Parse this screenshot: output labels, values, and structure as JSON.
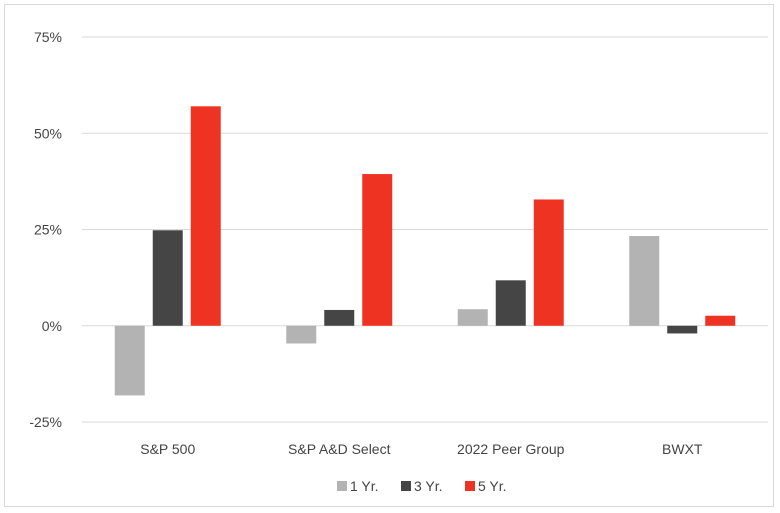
{
  "chart_data": {
    "type": "bar",
    "categories": [
      "S&P 500",
      "S&P A&D Select",
      "2022 Peer Group",
      "BWXT"
    ],
    "series": [
      {
        "name": "1 Yr.",
        "color": "#b3b3b3",
        "values": [
          -18.1,
          -4.6,
          4.3,
          23.3
        ]
      },
      {
        "name": "3 Yr.",
        "color": "#454545",
        "values": [
          24.8,
          4.1,
          11.8,
          -2.0
        ]
      },
      {
        "name": "5 Yr.",
        "color": "#ef3322",
        "values": [
          57.0,
          39.4,
          32.8,
          2.6
        ]
      }
    ],
    "ylim": [
      -25,
      75
    ],
    "yticks": [
      -25,
      0,
      25,
      50,
      75
    ],
    "ytick_labels": [
      "-25%",
      "0%",
      "25%",
      "50%",
      "75%"
    ],
    "grid": true,
    "legend_position": "bottom-center"
  }
}
